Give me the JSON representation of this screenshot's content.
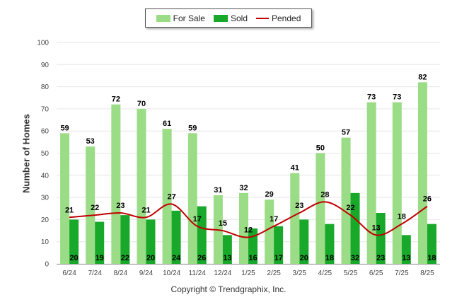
{
  "chart_data": {
    "type": "bar",
    "categories": [
      "6/24",
      "7/24",
      "8/24",
      "9/24",
      "10/24",
      "11/24",
      "12/24",
      "1/25",
      "2/25",
      "3/25",
      "4/25",
      "5/25",
      "6/25",
      "7/25",
      "8/25"
    ],
    "series": [
      {
        "name": "For Sale",
        "type": "bar",
        "color": "#9bdc87",
        "values": [
          59,
          53,
          72,
          70,
          61,
          59,
          31,
          32,
          29,
          41,
          50,
          57,
          73,
          73,
          82
        ]
      },
      {
        "name": "Sold",
        "type": "bar",
        "color": "#18a82a",
        "values": [
          20,
          19,
          22,
          20,
          24,
          26,
          13,
          16,
          17,
          20,
          18,
          32,
          23,
          13,
          18
        ]
      },
      {
        "name": "Pended",
        "type": "line",
        "color": "#c00000",
        "values": [
          21,
          22,
          23,
          21,
          27,
          17,
          15,
          12,
          17,
          23,
          28,
          22,
          13,
          18,
          26
        ]
      }
    ],
    "ylabel": "Number of Homes",
    "ylim": [
      0,
      100
    ],
    "yticks": [
      0,
      10,
      20,
      30,
      40,
      50,
      60,
      70,
      80,
      90,
      100
    ],
    "grid": true,
    "legend_position": "top-center"
  },
  "copyright": "Copyright © Trendgraphix, Inc."
}
